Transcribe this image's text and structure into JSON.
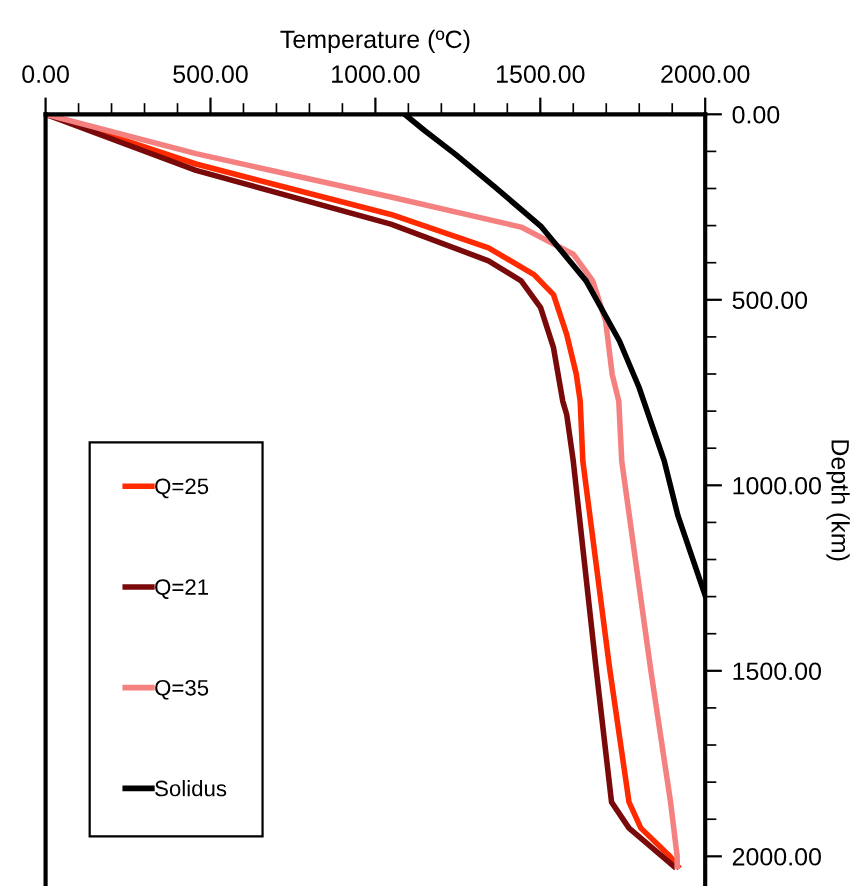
{
  "chart_data": {
    "type": "line",
    "xlabel": "Temperature (ºC)",
    "ylabel": "Depth (km)",
    "xlim": [
      0,
      2000
    ],
    "ylim": [
      2080,
      0
    ],
    "xticks": [
      {
        "value": 0,
        "label": "0.00"
      },
      {
        "value": 100,
        "label": null
      },
      {
        "value": 200,
        "label": null
      },
      {
        "value": 300,
        "label": null
      },
      {
        "value": 400,
        "label": null
      },
      {
        "value": 500,
        "label": "500.00"
      },
      {
        "value": 600,
        "label": null
      },
      {
        "value": 700,
        "label": null
      },
      {
        "value": 800,
        "label": null
      },
      {
        "value": 900,
        "label": null
      },
      {
        "value": 1000,
        "label": "1000.00"
      },
      {
        "value": 1100,
        "label": null
      },
      {
        "value": 1200,
        "label": null
      },
      {
        "value": 1300,
        "label": null
      },
      {
        "value": 1400,
        "label": null
      },
      {
        "value": 1500,
        "label": "1500.00"
      },
      {
        "value": 1600,
        "label": null
      },
      {
        "value": 1700,
        "label": null
      },
      {
        "value": 1800,
        "label": null
      },
      {
        "value": 1900,
        "label": null
      },
      {
        "value": 2000,
        "label": "2000.00"
      }
    ],
    "yticks": [
      {
        "value": 0,
        "label": "0.00"
      },
      {
        "value": 100,
        "label": null
      },
      {
        "value": 200,
        "label": null
      },
      {
        "value": 300,
        "label": null
      },
      {
        "value": 400,
        "label": null
      },
      {
        "value": 500,
        "label": "500.00"
      },
      {
        "value": 600,
        "label": null
      },
      {
        "value": 700,
        "label": null
      },
      {
        "value": 800,
        "label": null
      },
      {
        "value": 900,
        "label": null
      },
      {
        "value": 1000,
        "label": "1000.00"
      },
      {
        "value": 1100,
        "label": null
      },
      {
        "value": 1200,
        "label": null
      },
      {
        "value": 1300,
        "label": null
      },
      {
        "value": 1400,
        "label": null
      },
      {
        "value": 1500,
        "label": "1500.00"
      },
      {
        "value": 1600,
        "label": null
      },
      {
        "value": 1700,
        "label": null
      },
      {
        "value": 1800,
        "label": null
      },
      {
        "value": 1900,
        "label": null
      },
      {
        "value": 2000,
        "label": "2000.00"
      }
    ],
    "grid": false,
    "legend": "bottom left",
    "marker": "none",
    "line_style": "solid",
    "series": [
      {
        "name": "Q=25",
        "color": "#ff2a00",
        "x": [
          0,
          456,
          1047,
          1343,
          1481,
          1540,
          1580,
          1609,
          1621,
          1629,
          1710,
          1769,
          1805,
          1893,
          1917
        ],
        "values": [
          0,
          134,
          270,
          360,
          432,
          486,
          593,
          700,
          773,
          935,
          1492,
          1854,
          1924,
          2000,
          2027
        ]
      },
      {
        "name": "Q=21",
        "color": "#7a0a0a",
        "x": [
          0,
          456,
          1047,
          1343,
          1442,
          1501,
          1540,
          1568,
          1580,
          1600,
          1669,
          1716,
          1769,
          1834,
          1905
        ],
        "values": [
          0,
          151,
          296,
          395,
          449,
          521,
          629,
          773,
          809,
          935,
          1492,
          1854,
          1924,
          1973,
          2027
        ]
      },
      {
        "name": "Q=35",
        "color": "#f58080",
        "x": [
          0,
          456,
          1047,
          1442,
          1600,
          1659,
          1698,
          1718,
          1738,
          1747,
          1834,
          1895,
          1915,
          1915
        ],
        "values": [
          0,
          106,
          223,
          304,
          377,
          449,
          557,
          701,
          773,
          935,
          1492,
          1854,
          2000,
          2027
        ]
      },
      {
        "name": "Solidus",
        "color": "#000000",
        "x": [
          1089,
          1148,
          1243,
          1361,
          1503,
          1639,
          1740,
          1799,
          1876,
          1917,
          2000
        ],
        "values": [
          0,
          43,
          108,
          195,
          303,
          449,
          611,
          735,
          935,
          1081,
          1297
        ]
      }
    ]
  }
}
